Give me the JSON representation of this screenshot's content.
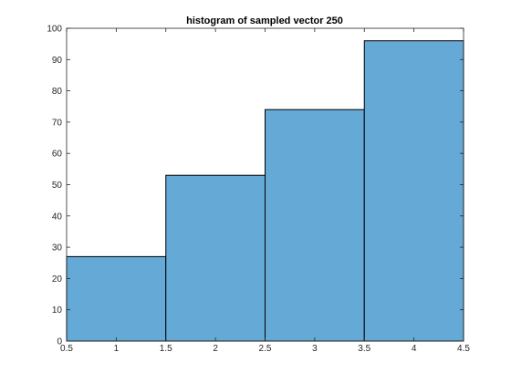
{
  "chart_data": {
    "type": "bar",
    "title": "histogram of sampled vector 250",
    "xlabel": "",
    "ylabel": "",
    "bin_edges": [
      0.5,
      1.5,
      2.5,
      3.5,
      4.5
    ],
    "categories": [
      "1",
      "2",
      "3",
      "4"
    ],
    "values": [
      27,
      53,
      74,
      96
    ],
    "xlim": [
      0.5,
      4.5
    ],
    "ylim": [
      0,
      100
    ],
    "x_ticks": [
      0.5,
      1,
      1.5,
      2,
      2.5,
      3,
      3.5,
      4,
      4.5
    ],
    "x_tick_labels": [
      "0.5",
      "1",
      "1.5",
      "2",
      "2.5",
      "3",
      "3.5",
      "4",
      "4.5"
    ],
    "y_ticks": [
      0,
      10,
      20,
      30,
      40,
      50,
      60,
      70,
      80,
      90,
      100
    ],
    "y_tick_labels": [
      "0",
      "10",
      "20",
      "30",
      "40",
      "50",
      "60",
      "70",
      "80",
      "90",
      "100"
    ],
    "grid": false,
    "legend": "none",
    "colors": {
      "bar_fill": "#65A9D7",
      "bar_edge": "#000000",
      "axis": "#262626"
    }
  }
}
